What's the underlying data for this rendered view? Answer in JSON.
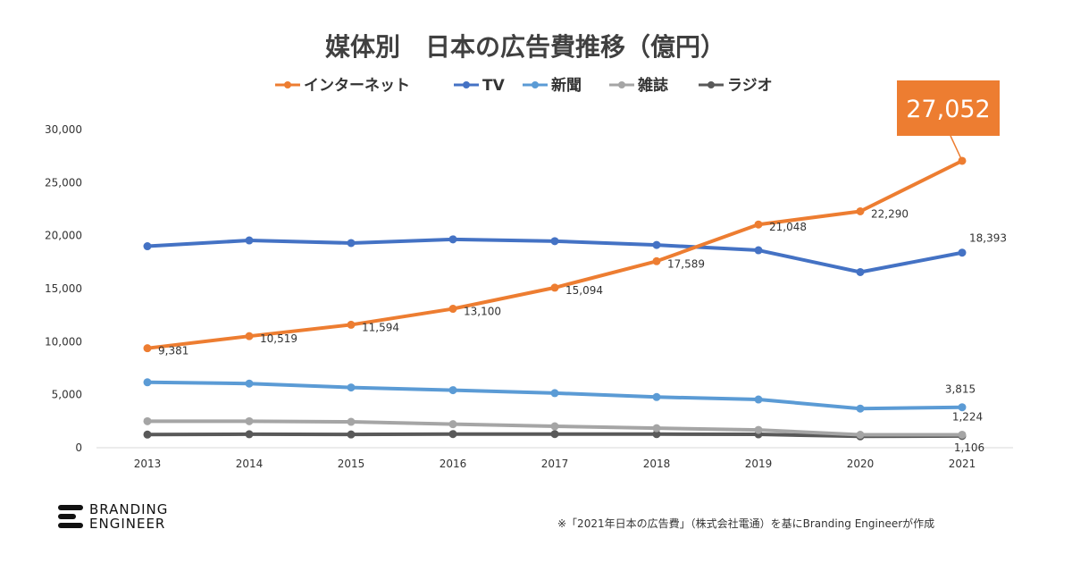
{
  "chart_data": {
    "type": "line",
    "title": "媒体別　日本の広告費推移（億円）",
    "categories": [
      "2013",
      "2014",
      "2015",
      "2016",
      "2017",
      "2018",
      "2019",
      "2020",
      "2021"
    ],
    "y_ticks": [
      "0",
      "5,000",
      "10,000",
      "15,000",
      "20,000",
      "25,000",
      "30,000"
    ],
    "ylim": [
      0,
      30000
    ],
    "grid": false,
    "legend_position": "top",
    "series": [
      {
        "name": "インターネット",
        "color": "#ED7D31",
        "values": [
          9381,
          10519,
          11594,
          13100,
          15094,
          17589,
          21048,
          22290,
          27052
        ],
        "labels": [
          "9,381",
          "10,519",
          "11,594",
          "13,100",
          "15,094",
          "17,589",
          "21,048",
          "22,290",
          "27,052"
        ]
      },
      {
        "name": "TV",
        "color": "#4472C4",
        "values": [
          19000,
          19550,
          19300,
          19650,
          19480,
          19120,
          18620,
          16560,
          18393
        ],
        "labels": [
          "",
          "",
          "",
          "",
          "",
          "",
          "",
          "",
          "18,393"
        ]
      },
      {
        "name": "新聞",
        "color": "#5B9BD5",
        "values": [
          6170,
          6050,
          5680,
          5430,
          5150,
          4780,
          4550,
          3690,
          3815
        ],
        "labels": [
          "",
          "",
          "",
          "",
          "",
          "",
          "",
          "",
          "3,815"
        ]
      },
      {
        "name": "雑誌",
        "color": "#A5A5A5",
        "values": [
          2500,
          2500,
          2440,
          2220,
          2020,
          1840,
          1680,
          1220,
          1224
        ],
        "labels": [
          "",
          "",
          "",
          "",
          "",
          "",
          "",
          "",
          "1,224"
        ]
      },
      {
        "name": "ラジオ",
        "color": "#595959",
        "values": [
          1240,
          1270,
          1250,
          1290,
          1290,
          1280,
          1260,
          1070,
          1106
        ],
        "labels": [
          "",
          "",
          "",
          "",
          "",
          "",
          "",
          "",
          "1,106"
        ]
      }
    ],
    "callout": {
      "text": "27,052",
      "color": "#ED7D31"
    }
  },
  "footer": {
    "logo_line1": "BRANDING",
    "logo_line2": "ENGINEER",
    "source": "※「2021年日本の広告費」（株式会社電通）を基にBranding Engineerが作成"
  }
}
